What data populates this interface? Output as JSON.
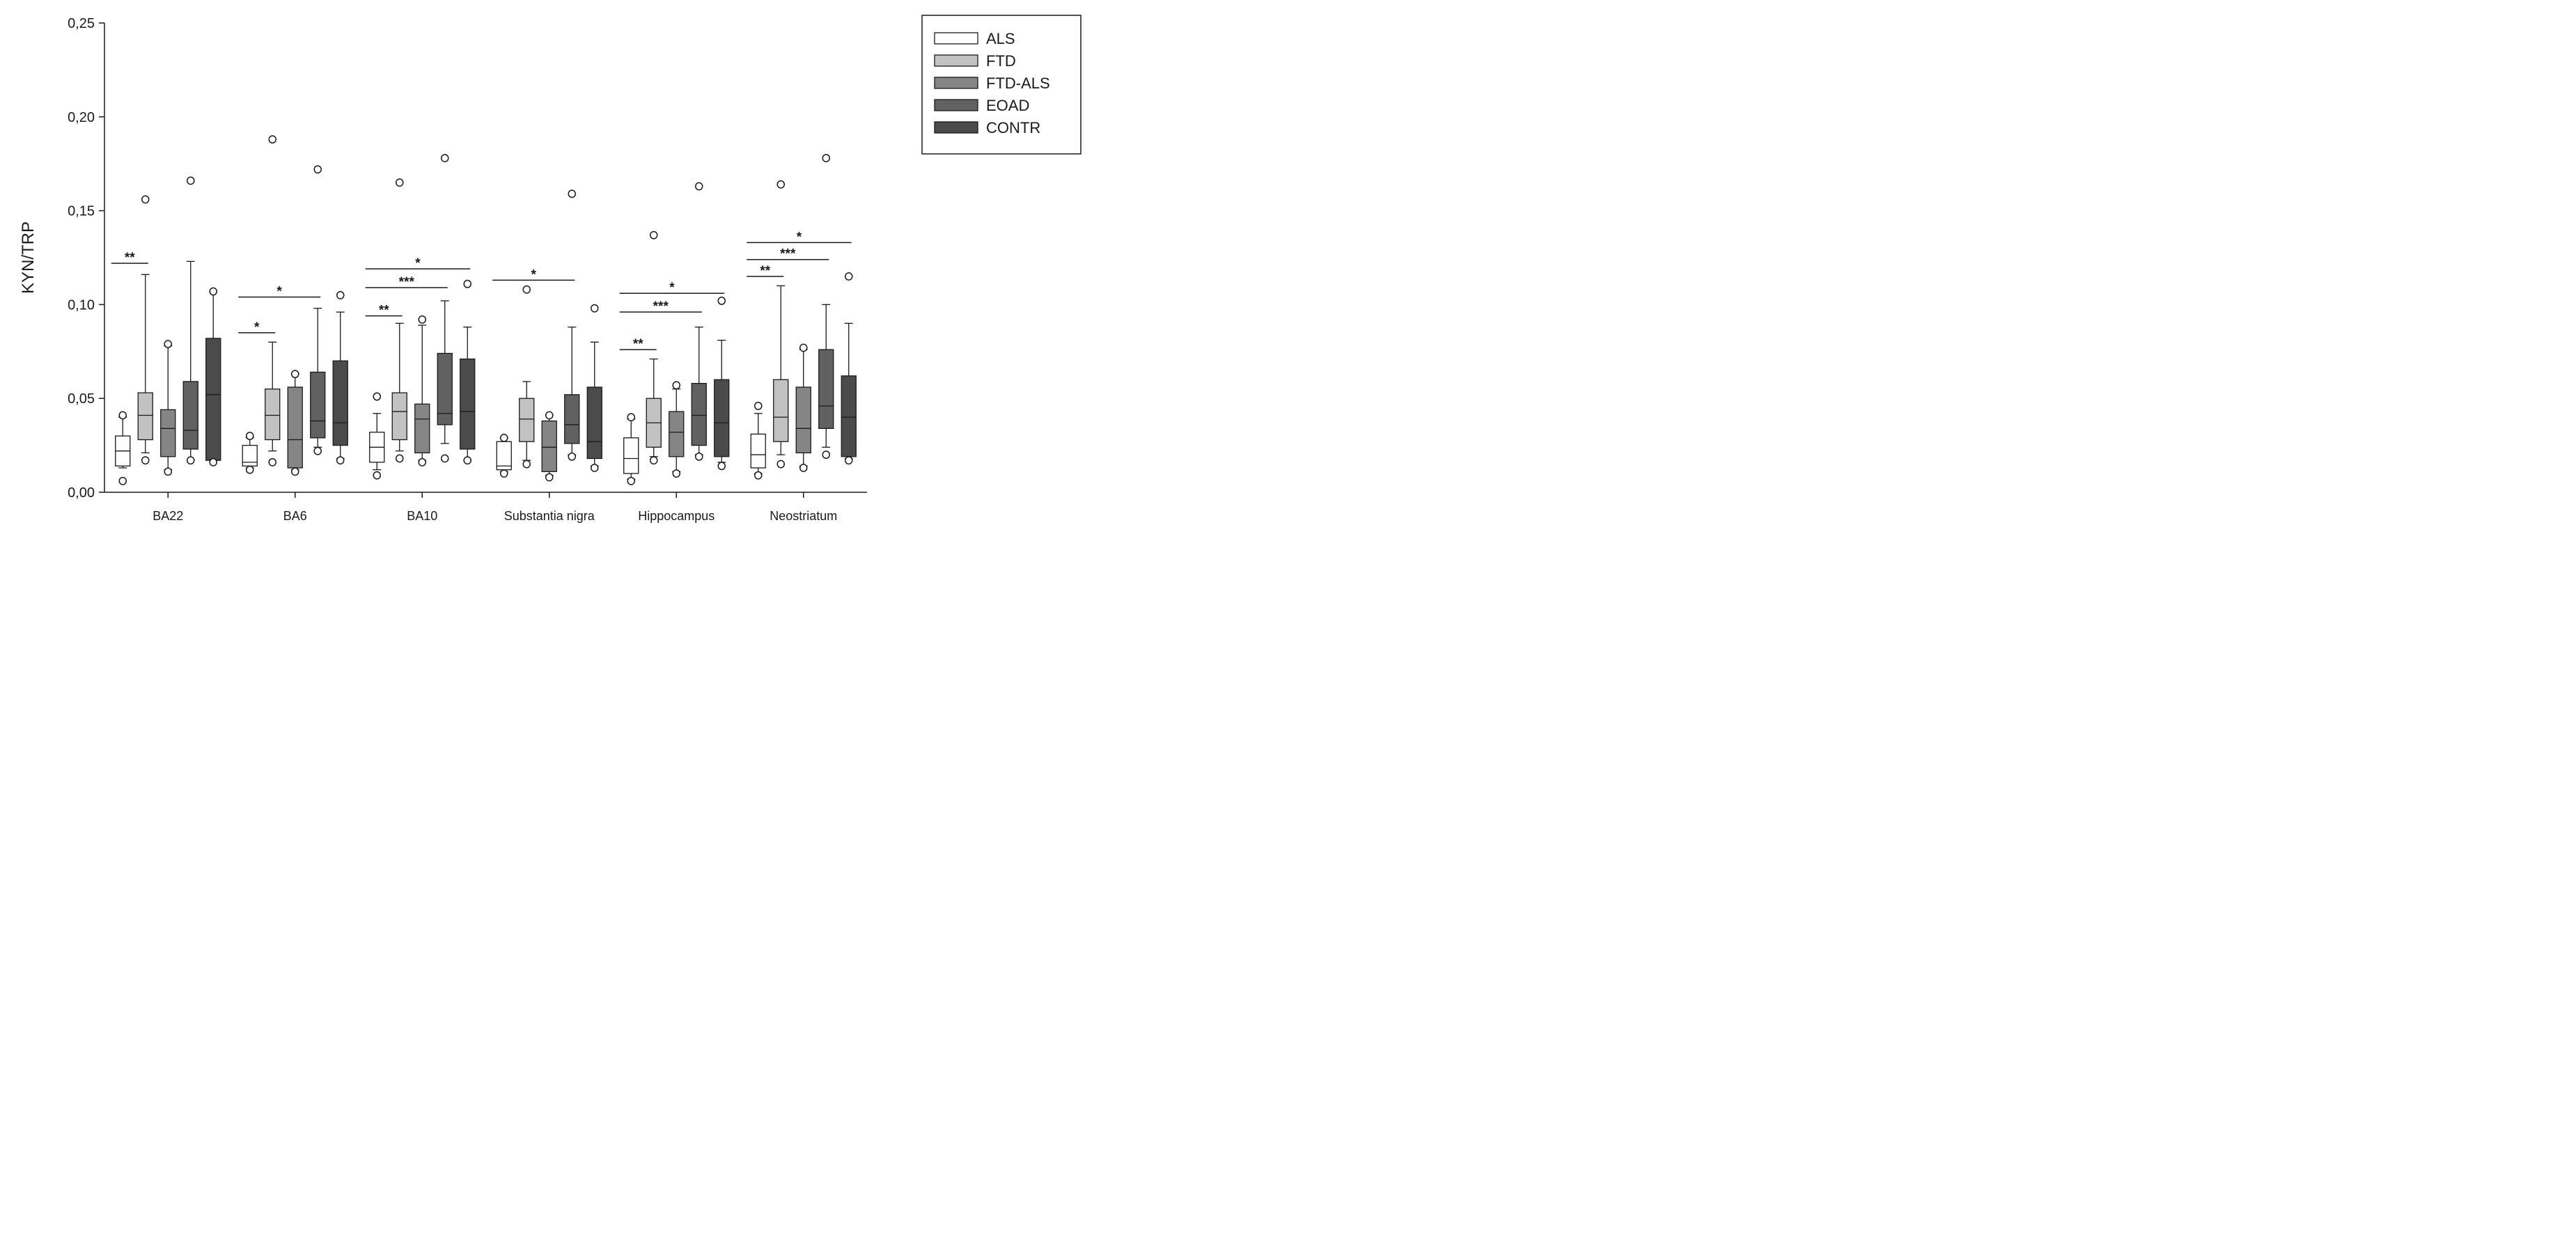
{
  "chart_data": {
    "type": "box",
    "title": "",
    "xlabel": "",
    "ylabel": "KYN/TRP",
    "ylim": [
      0,
      0.25
    ],
    "yticks": [
      "0,00",
      "0,05",
      "0,10",
      "0,15",
      "0,20",
      "0,25"
    ],
    "ytick_values": [
      0,
      0.05,
      0.1,
      0.15,
      0.2,
      0.25
    ],
    "categories": [
      "BA22",
      "BA6",
      "BA10",
      "Substantia nigra",
      "Hippocampus",
      "Neostriatum"
    ],
    "legend_position": "top-right",
    "series": [
      {
        "name": "ALS",
        "color": "#ffffff"
      },
      {
        "name": "FTD",
        "color": "#c2c2c2"
      },
      {
        "name": "FTD-ALS",
        "color": "#858585"
      },
      {
        "name": "EOAD",
        "color": "#616161"
      },
      {
        "name": "CONTR",
        "color": "#4b4b4b"
      }
    ],
    "boxes": [
      [
        {
          "wlo": 0.013,
          "q1": 0.014,
          "med": 0.022,
          "q3": 0.03,
          "whi": 0.04,
          "out": [
            0.041,
            0.006
          ]
        },
        {
          "wlo": 0.021,
          "q1": 0.028,
          "med": 0.041,
          "q3": 0.053,
          "whi": 0.116,
          "out": [
            0.156,
            0.017
          ]
        },
        {
          "wlo": 0.012,
          "q1": 0.019,
          "med": 0.034,
          "q3": 0.044,
          "whi": 0.078,
          "out": [
            0.079,
            0.011
          ]
        },
        {
          "wlo": 0.017,
          "q1": 0.023,
          "med": 0.033,
          "q3": 0.059,
          "whi": 0.123,
          "out": [
            0.166,
            0.017
          ]
        },
        {
          "wlo": 0.017,
          "q1": 0.017,
          "med": 0.052,
          "q3": 0.082,
          "whi": 0.107,
          "out": [
            0.107,
            0.016
          ]
        }
      ],
      [
        {
          "wlo": 0.013,
          "q1": 0.014,
          "med": 0.016,
          "q3": 0.025,
          "whi": 0.029,
          "out": [
            0.03,
            0.012
          ]
        },
        {
          "wlo": 0.022,
          "q1": 0.028,
          "med": 0.041,
          "q3": 0.055,
          "whi": 0.08,
          "out": [
            0.188,
            0.016
          ]
        },
        {
          "wlo": 0.012,
          "q1": 0.013,
          "med": 0.028,
          "q3": 0.056,
          "whi": 0.063,
          "out": [
            0.063,
            0.011
          ]
        },
        {
          "wlo": 0.024,
          "q1": 0.029,
          "med": 0.038,
          "q3": 0.064,
          "whi": 0.098,
          "out": [
            0.172,
            0.022
          ]
        },
        {
          "wlo": 0.018,
          "q1": 0.025,
          "med": 0.037,
          "q3": 0.07,
          "whi": 0.096,
          "out": [
            0.105,
            0.017
          ]
        }
      ],
      [
        {
          "wlo": 0.012,
          "q1": 0.016,
          "med": 0.024,
          "q3": 0.032,
          "whi": 0.042,
          "out": [
            0.051,
            0.009
          ]
        },
        {
          "wlo": 0.022,
          "q1": 0.028,
          "med": 0.043,
          "q3": 0.053,
          "whi": 0.09,
          "out": [
            0.165,
            0.018
          ]
        },
        {
          "wlo": 0.017,
          "q1": 0.021,
          "med": 0.039,
          "q3": 0.047,
          "whi": 0.089,
          "out": [
            0.092,
            0.016
          ]
        },
        {
          "wlo": 0.026,
          "q1": 0.036,
          "med": 0.042,
          "q3": 0.074,
          "whi": 0.102,
          "out": [
            0.178,
            0.018
          ]
        },
        {
          "wlo": 0.017,
          "q1": 0.023,
          "med": 0.043,
          "q3": 0.071,
          "whi": 0.088,
          "out": [
            0.111,
            0.017
          ]
        }
      ],
      [
        {
          "wlo": 0.011,
          "q1": 0.012,
          "med": 0.014,
          "q3": 0.027,
          "whi": 0.029,
          "out": [
            0.029,
            0.01
          ]
        },
        {
          "wlo": 0.017,
          "q1": 0.027,
          "med": 0.039,
          "q3": 0.05,
          "whi": 0.059,
          "out": [
            0.108,
            0.015
          ]
        },
        {
          "wlo": 0.009,
          "q1": 0.011,
          "med": 0.024,
          "q3": 0.038,
          "whi": 0.041,
          "out": [
            0.041,
            0.008
          ]
        },
        {
          "wlo": 0.02,
          "q1": 0.026,
          "med": 0.036,
          "q3": 0.052,
          "whi": 0.088,
          "out": [
            0.159,
            0.019
          ]
        },
        {
          "wlo": 0.014,
          "q1": 0.018,
          "med": 0.027,
          "q3": 0.056,
          "whi": 0.08,
          "out": [
            0.098,
            0.013
          ]
        }
      ],
      [
        {
          "wlo": 0.007,
          "q1": 0.01,
          "med": 0.018,
          "q3": 0.029,
          "whi": 0.039,
          "out": [
            0.04,
            0.006
          ]
        },
        {
          "wlo": 0.019,
          "q1": 0.024,
          "med": 0.037,
          "q3": 0.05,
          "whi": 0.071,
          "out": [
            0.137,
            0.017
          ]
        },
        {
          "wlo": 0.011,
          "q1": 0.019,
          "med": 0.032,
          "q3": 0.043,
          "whi": 0.055,
          "out": [
            0.057,
            0.01
          ]
        },
        {
          "wlo": 0.02,
          "q1": 0.025,
          "med": 0.041,
          "q3": 0.058,
          "whi": 0.088,
          "out": [
            0.163,
            0.019
          ]
        },
        {
          "wlo": 0.016,
          "q1": 0.019,
          "med": 0.037,
          "q3": 0.06,
          "whi": 0.081,
          "out": [
            0.102,
            0.014
          ]
        }
      ],
      [
        {
          "wlo": 0.01,
          "q1": 0.013,
          "med": 0.02,
          "q3": 0.031,
          "whi": 0.042,
          "out": [
            0.046,
            0.009
          ]
        },
        {
          "wlo": 0.02,
          "q1": 0.027,
          "med": 0.04,
          "q3": 0.06,
          "whi": 0.11,
          "out": [
            0.164,
            0.015
          ]
        },
        {
          "wlo": 0.014,
          "q1": 0.021,
          "med": 0.034,
          "q3": 0.056,
          "whi": 0.076,
          "out": [
            0.077,
            0.013
          ]
        },
        {
          "wlo": 0.024,
          "q1": 0.034,
          "med": 0.046,
          "q3": 0.076,
          "whi": 0.1,
          "out": [
            0.178,
            0.02
          ]
        },
        {
          "wlo": 0.018,
          "q1": 0.019,
          "med": 0.04,
          "q3": 0.062,
          "whi": 0.09,
          "out": [
            0.115,
            0.017
          ]
        }
      ]
    ],
    "significance": [
      {
        "category": 0,
        "from": 0,
        "to": 1,
        "y": 0.122,
        "label": "**"
      },
      {
        "category": 1,
        "from": 0,
        "to": 1,
        "y": 0.085,
        "label": "*"
      },
      {
        "category": 1,
        "from": 0,
        "to": 3,
        "y": 0.104,
        "label": "*"
      },
      {
        "category": 2,
        "from": 0,
        "to": 1,
        "y": 0.094,
        "label": "**"
      },
      {
        "category": 2,
        "from": 0,
        "to": 3,
        "y": 0.109,
        "label": "***"
      },
      {
        "category": 2,
        "from": 0,
        "to": 4,
        "y": 0.119,
        "label": "*"
      },
      {
        "category": 3,
        "from": 0,
        "to": 3,
        "y": 0.113,
        "label": "*"
      },
      {
        "category": 4,
        "from": 0,
        "to": 1,
        "y": 0.076,
        "label": "**"
      },
      {
        "category": 4,
        "from": 0,
        "to": 3,
        "y": 0.096,
        "label": "***"
      },
      {
        "category": 4,
        "from": 0,
        "to": 4,
        "y": 0.106,
        "label": "*"
      },
      {
        "category": 5,
        "from": 0,
        "to": 1,
        "y": 0.115,
        "label": "**"
      },
      {
        "category": 5,
        "from": 0,
        "to": 3,
        "y": 0.124,
        "label": "***"
      },
      {
        "category": 5,
        "from": 0,
        "to": 4,
        "y": 0.133,
        "label": "*"
      }
    ]
  }
}
